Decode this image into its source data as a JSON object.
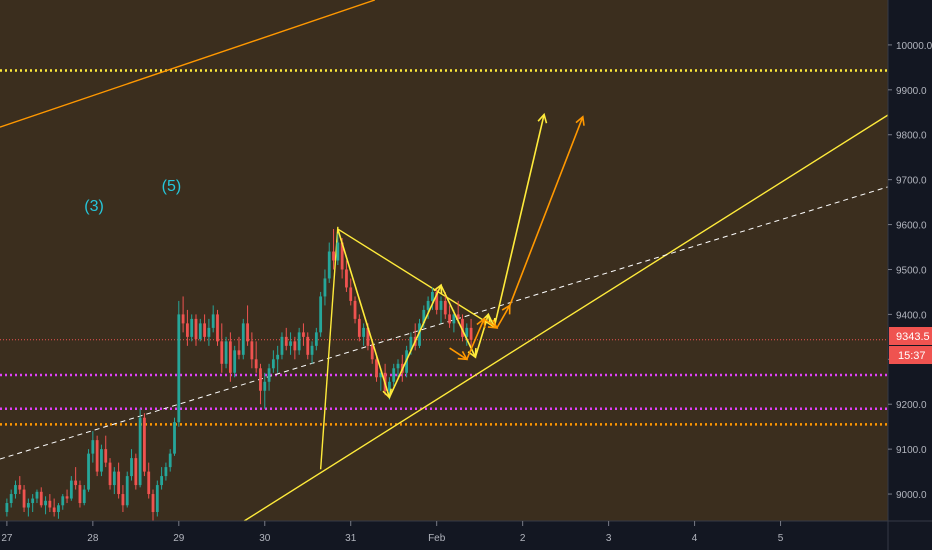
{
  "chart_data": {
    "type": "candlestick",
    "symbol_note": "BTC price chart with drawn channel and projection arrows",
    "y_axis": {
      "ticks": [
        9000,
        9100,
        9200,
        9300,
        9400,
        9500,
        9600,
        9700,
        9800,
        9900,
        10000
      ],
      "tick_labels": [
        "9000.0",
        "9100.0",
        "9200.0",
        "9300.0",
        "9400.0",
        "9500.0",
        "9600.0",
        "9700.0",
        "9800.0",
        "9900.0",
        "10000.0"
      ],
      "ylim": [
        8940,
        10100
      ]
    },
    "x_axis": {
      "tick_labels": [
        "27",
        "28",
        "29",
        "30",
        "31",
        "Feb",
        "2",
        "3",
        "4",
        "5"
      ],
      "tick_days": [
        27,
        28,
        29,
        30,
        31,
        32,
        33,
        34,
        35,
        36
      ],
      "xlim_days": [
        26.92,
        37.25
      ]
    },
    "price_badge": {
      "value": "9343.5",
      "countdown": "15:37",
      "price": 9343.5
    },
    "wave_labels": [
      {
        "text": "(3)",
        "day": 27.9,
        "price": 9630
      },
      {
        "text": "(5)",
        "day": 28.8,
        "price": 9675
      }
    ],
    "horizontal_levels": [
      {
        "price": 9943,
        "color": "#ffeb3b",
        "style": "dotted"
      },
      {
        "price": 9343.5,
        "color": "#ef5350",
        "style": "dotted"
      },
      {
        "price": 9265,
        "color": "#e040fb",
        "style": "dotted"
      },
      {
        "price": 9190,
        "color": "#e040fb",
        "style": "dotted"
      },
      {
        "price": 9155,
        "color": "#ff9800",
        "style": "dotted"
      }
    ],
    "trend_lines": [
      {
        "from": [
          26.92,
          9817
        ],
        "to": [
          31.28,
          10100
        ],
        "color": "#ff9800",
        "style": "solid"
      },
      {
        "from": [
          29.76,
          8940
        ],
        "to": [
          37.25,
          9844
        ],
        "color": "#ffeb3b",
        "style": "solid"
      },
      {
        "from": [
          26.92,
          9078
        ],
        "to": [
          37.25,
          9684
        ],
        "color": "#ffffff",
        "style": "dashed"
      },
      {
        "from": [
          30.65,
          9055
        ],
        "to": [
          30.85,
          9595
        ],
        "color": "#ffeb3b",
        "style": "solid"
      },
      {
        "from": [
          30.85,
          9590
        ],
        "to": [
          32.67,
          9372
        ],
        "color": "#ffeb3b",
        "style": "solid"
      }
    ],
    "projection_paths": [
      {
        "color": "#ffeb3b",
        "points": [
          [
            30.85,
            9590
          ],
          [
            31.45,
            9215
          ],
          [
            32.05,
            9465
          ],
          [
            32.45,
            9305
          ],
          [
            32.6,
            9400
          ],
          [
            32.67,
            9372
          ]
        ]
      },
      {
        "color": "#ffeb3b",
        "points": [
          [
            32.67,
            9372
          ],
          [
            33.25,
            9845
          ]
        ]
      },
      {
        "color": "#ff9800",
        "points": [
          [
            32.15,
            9325
          ],
          [
            32.35,
            9300
          ],
          [
            32.55,
            9390
          ],
          [
            32.7,
            9370
          ],
          [
            32.85,
            9420
          ],
          [
            33.7,
            9840
          ]
        ]
      }
    ],
    "series": [
      {
        "values": [
          [
            27.0,
            8960,
            8990,
            8950,
            8980
          ],
          [
            27.05,
            8980,
            9010,
            8970,
            9000
          ],
          [
            27.1,
            9000,
            9030,
            8990,
            9020
          ],
          [
            27.15,
            9020,
            9040,
            9000,
            9010
          ],
          [
            27.2,
            9010,
            9020,
            8960,
            8970
          ],
          [
            27.25,
            8970,
            8990,
            8950,
            8980
          ],
          [
            27.3,
            8980,
            9000,
            8960,
            8990
          ],
          [
            27.35,
            8990,
            9010,
            8980,
            9005
          ],
          [
            27.4,
            9005,
            9015,
            8970,
            8975
          ],
          [
            27.45,
            8975,
            8995,
            8955,
            8985
          ],
          [
            27.5,
            8985,
            9000,
            8960,
            8970
          ],
          [
            27.55,
            8970,
            8990,
            8950,
            8960
          ],
          [
            27.6,
            8960,
            8980,
            8945,
            8975
          ],
          [
            27.65,
            8975,
            9000,
            8965,
            8995
          ],
          [
            27.7,
            8995,
            9010,
            8980,
            8990
          ],
          [
            27.75,
            8990,
            9040,
            8985,
            9030
          ],
          [
            27.8,
            9030,
            9060,
            9010,
            9020
          ],
          [
            27.85,
            9020,
            9030,
            8970,
            8980
          ],
          [
            27.9,
            8980,
            9020,
            8975,
            9010
          ],
          [
            27.95,
            9010,
            9100,
            9005,
            9090
          ],
          [
            28.0,
            9090,
            9140,
            9070,
            9120
          ],
          [
            28.05,
            9120,
            9130,
            9040,
            9050
          ],
          [
            28.1,
            9050,
            9110,
            9040,
            9100
          ],
          [
            28.15,
            9100,
            9130,
            9060,
            9070
          ],
          [
            28.2,
            9070,
            9080,
            9010,
            9020
          ],
          [
            28.25,
            9020,
            9060,
            9000,
            9050
          ],
          [
            28.3,
            9050,
            9070,
            8990,
            9000
          ],
          [
            28.35,
            9000,
            9020,
            8960,
            8975
          ],
          [
            28.4,
            8975,
            9050,
            8970,
            9040
          ],
          [
            28.45,
            9040,
            9100,
            9030,
            9080
          ],
          [
            28.5,
            9080,
            9090,
            9010,
            9020
          ],
          [
            28.55,
            9020,
            9190,
            9015,
            9170
          ],
          [
            28.6,
            9170,
            9180,
            9040,
            9050
          ],
          [
            28.65,
            9050,
            9070,
            8990,
            9000
          ],
          [
            28.7,
            9000,
            9010,
            8940,
            8960
          ],
          [
            28.75,
            8960,
            9030,
            8950,
            9020
          ],
          [
            28.8,
            9020,
            9060,
            9010,
            9040
          ],
          [
            28.85,
            9040,
            9070,
            9030,
            9060
          ],
          [
            28.9,
            9060,
            9100,
            9050,
            9090
          ],
          [
            28.95,
            9090,
            9170,
            9085,
            9160
          ],
          [
            29.0,
            9160,
            9430,
            9150,
            9400
          ],
          [
            29.05,
            9400,
            9440,
            9360,
            9380
          ],
          [
            29.1,
            9380,
            9410,
            9330,
            9350
          ],
          [
            29.15,
            9350,
            9400,
            9340,
            9390
          ],
          [
            29.2,
            9390,
            9400,
            9330,
            9345
          ],
          [
            29.25,
            9345,
            9390,
            9340,
            9380
          ],
          [
            29.3,
            9380,
            9400,
            9340,
            9350
          ],
          [
            29.35,
            9350,
            9390,
            9330,
            9370
          ],
          [
            29.4,
            9370,
            9420,
            9360,
            9400
          ],
          [
            29.45,
            9400,
            9410,
            9330,
            9340
          ],
          [
            29.5,
            9340,
            9380,
            9270,
            9290
          ],
          [
            29.55,
            9290,
            9350,
            9280,
            9340
          ],
          [
            29.6,
            9340,
            9360,
            9250,
            9270
          ],
          [
            29.65,
            9270,
            9330,
            9260,
            9320
          ],
          [
            29.7,
            9320,
            9350,
            9300,
            9310
          ],
          [
            29.75,
            9310,
            9390,
            9300,
            9380
          ],
          [
            29.8,
            9380,
            9420,
            9330,
            9340
          ],
          [
            29.85,
            9340,
            9360,
            9280,
            9300
          ],
          [
            29.9,
            9300,
            9340,
            9270,
            9280
          ],
          [
            29.95,
            9280,
            9290,
            9200,
            9230
          ],
          [
            30.0,
            9230,
            9270,
            9190,
            9250
          ],
          [
            30.05,
            9250,
            9290,
            9230,
            9280
          ],
          [
            30.1,
            9280,
            9320,
            9270,
            9300
          ],
          [
            30.15,
            9300,
            9330,
            9270,
            9310
          ],
          [
            30.2,
            9310,
            9360,
            9300,
            9350
          ],
          [
            30.25,
            9350,
            9370,
            9320,
            9330
          ],
          [
            30.3,
            9330,
            9360,
            9310,
            9340
          ],
          [
            30.35,
            9340,
            9350,
            9300,
            9320
          ],
          [
            30.4,
            9320,
            9370,
            9310,
            9360
          ],
          [
            30.45,
            9360,
            9380,
            9330,
            9350
          ],
          [
            30.5,
            9350,
            9360,
            9300,
            9310
          ],
          [
            30.55,
            9310,
            9340,
            9290,
            9330
          ],
          [
            30.6,
            9330,
            9370,
            9320,
            9360
          ],
          [
            30.65,
            9360,
            9450,
            9350,
            9440
          ],
          [
            30.7,
            9440,
            9500,
            9420,
            9480
          ],
          [
            30.75,
            9480,
            9560,
            9470,
            9540
          ],
          [
            30.8,
            9540,
            9590,
            9500,
            9520
          ],
          [
            30.85,
            9520,
            9580,
            9510,
            9560
          ],
          [
            30.9,
            9560,
            9570,
            9480,
            9500
          ],
          [
            30.95,
            9500,
            9520,
            9450,
            9460
          ],
          [
            31.0,
            9460,
            9480,
            9420,
            9430
          ],
          [
            31.05,
            9430,
            9440,
            9380,
            9390
          ],
          [
            31.1,
            9390,
            9400,
            9340,
            9350
          ],
          [
            31.15,
            9350,
            9380,
            9330,
            9370
          ],
          [
            31.2,
            9370,
            9380,
            9320,
            9330
          ],
          [
            31.25,
            9330,
            9340,
            9290,
            9300
          ],
          [
            31.3,
            9300,
            9310,
            9250,
            9260
          ],
          [
            31.35,
            9260,
            9280,
            9230,
            9270
          ],
          [
            31.4,
            9270,
            9290,
            9220,
            9230
          ],
          [
            31.45,
            9230,
            9260,
            9210,
            9250
          ],
          [
            31.5,
            9250,
            9290,
            9240,
            9280
          ],
          [
            31.55,
            9280,
            9300,
            9260,
            9290
          ],
          [
            31.6,
            9290,
            9310,
            9250,
            9270
          ],
          [
            31.65,
            9270,
            9330,
            9260,
            9320
          ],
          [
            31.7,
            9320,
            9360,
            9310,
            9350
          ],
          [
            31.75,
            9350,
            9380,
            9320,
            9330
          ],
          [
            31.8,
            9330,
            9390,
            9325,
            9380
          ],
          [
            31.85,
            9380,
            9420,
            9370,
            9410
          ],
          [
            31.9,
            9410,
            9440,
            9390,
            9430
          ],
          [
            31.95,
            9430,
            9460,
            9410,
            9450
          ],
          [
            32.0,
            9450,
            9460,
            9400,
            9410
          ],
          [
            32.05,
            9410,
            9440,
            9380,
            9430
          ],
          [
            32.1,
            9430,
            9450,
            9390,
            9400
          ],
          [
            32.15,
            9400,
            9420,
            9370,
            9380
          ],
          [
            32.2,
            9380,
            9410,
            9360,
            9400
          ],
          [
            32.25,
            9400,
            9430,
            9380,
            9390
          ],
          [
            32.3,
            9390,
            9400,
            9340,
            9350
          ],
          [
            32.35,
            9350,
            9380,
            9330,
            9370
          ],
          [
            32.4,
            9370,
            9390,
            9330,
            9343.5
          ]
        ]
      }
    ]
  }
}
